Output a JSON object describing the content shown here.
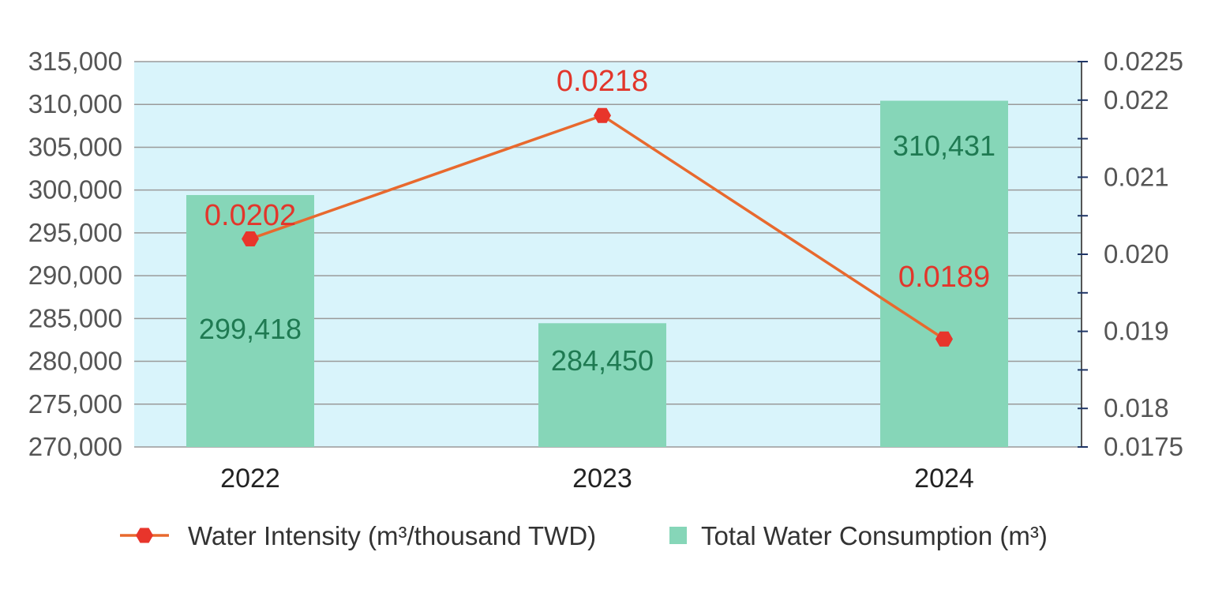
{
  "chart_data": {
    "type": "bar",
    "categories": [
      "2022",
      "2023",
      "2024"
    ],
    "series": [
      {
        "name": "Total Water Consumption (m³)",
        "type": "bar",
        "axis": "left",
        "values": [
          299418,
          284450,
          310431
        ],
        "labels": [
          "299,418",
          "284,450",
          "310,431"
        ]
      },
      {
        "name": "Water Intensity (m³/thousand TWD)",
        "type": "line",
        "axis": "right",
        "values": [
          0.0202,
          0.0218,
          0.0189
        ],
        "labels": [
          "0.0202",
          "0.0218",
          "0.0189"
        ]
      }
    ],
    "y_left": {
      "min": 270000,
      "max": 315000,
      "ticks": [
        270000,
        275000,
        280000,
        285000,
        290000,
        295000,
        300000,
        305000,
        310000,
        315000
      ],
      "tick_labels": [
        "270,000",
        "275,000",
        "280,000",
        "285,000",
        "290,000",
        "295,000",
        "300,000",
        "305,000",
        "310,000",
        "315,000"
      ]
    },
    "y_right": {
      "min": 0.0175,
      "max": 0.0225,
      "ticks": [
        0.0175,
        0.018,
        0.019,
        0.02,
        0.021,
        0.022,
        0.0225
      ],
      "tick_labels": [
        "0.0175",
        "0.018",
        "0.019",
        "0.020",
        "0.021",
        "0.022",
        "0.0225"
      ]
    },
    "grid": true,
    "legend_position": "bottom",
    "colors": {
      "bar": "#86d6b8",
      "line": "#e8692e",
      "marker": "#e8352b",
      "plot_bg": "#d9f4fb",
      "grid": "#9a9a9a",
      "bar_label": "#1f7a52",
      "point_label": "#e2362b"
    }
  }
}
